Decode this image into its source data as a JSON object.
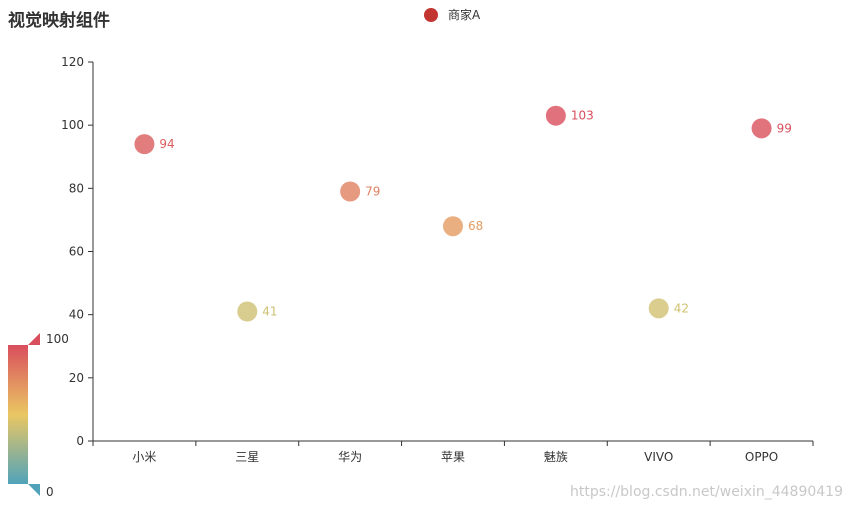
{
  "chart_data": {
    "type": "scatter",
    "title": "视觉映射组件",
    "categories": [
      "小米",
      "三星",
      "华为",
      "苹果",
      "魅族",
      "VIVO",
      "OPPO"
    ],
    "series": [
      {
        "name": "商家A",
        "values": [
          94,
          41,
          79,
          68,
          103,
          42,
          99
        ]
      }
    ],
    "ylim": [
      0,
      120
    ],
    "yticks": [
      0,
      20,
      40,
      60,
      80,
      100,
      120
    ],
    "xlabel": "",
    "ylabel": "",
    "legend_position": "top-center",
    "grid": false,
    "visual_map": {
      "min": 0,
      "max": 100,
      "min_label": "0",
      "max_label": "100",
      "colors": [
        "#50a3ba",
        "#eac763",
        "#d94e5d"
      ]
    }
  },
  "legend": {
    "label": "商家A",
    "color": "#c23531"
  },
  "watermark": "https://blog.csdn.net/weixin_44890419"
}
